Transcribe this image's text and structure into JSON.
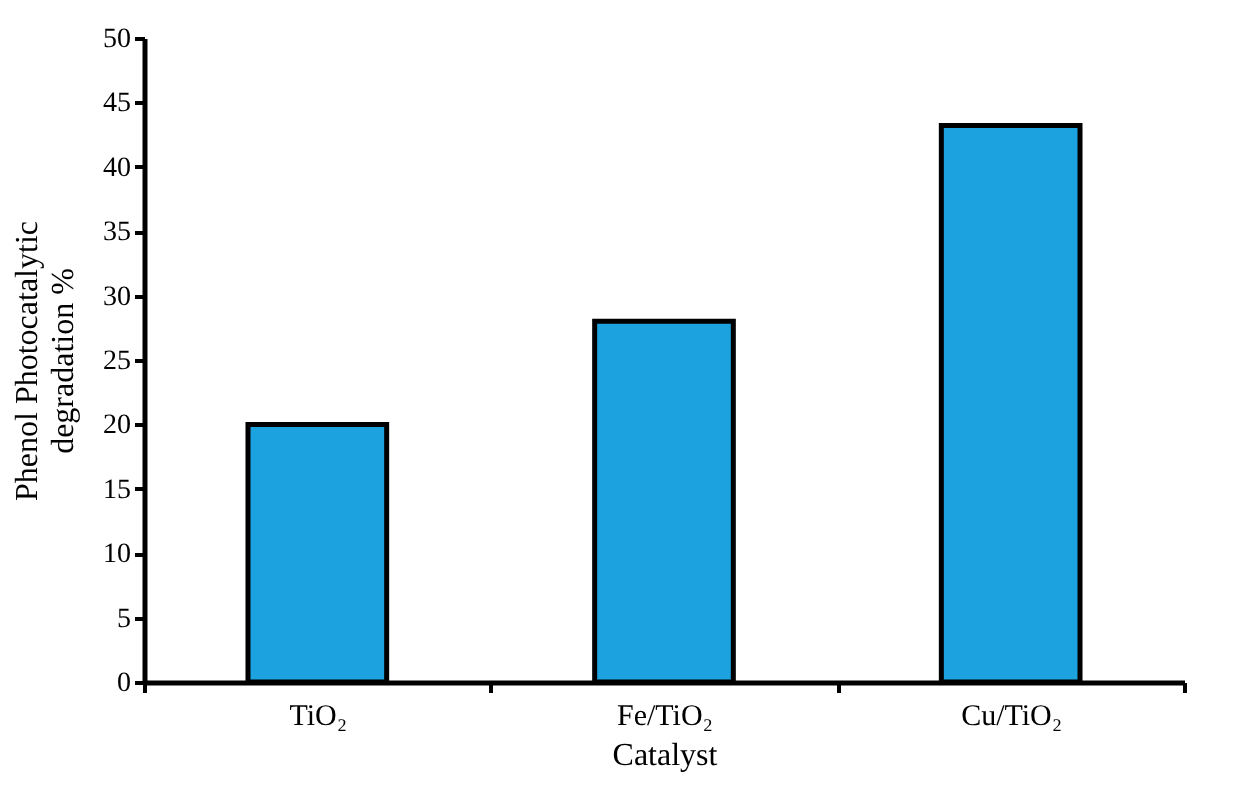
{
  "chart_data": {
    "type": "bar",
    "xlabel": "Catalyst",
    "ylabel": "Phenol Photocatalytic\ndegradation %",
    "categories": [
      "TiO₂",
      "Fe/TiO₂",
      "Cu/TiO₂"
    ],
    "values": [
      20,
      28,
      43.2
    ],
    "color": "#1ca3df",
    "ylim": [
      0,
      50
    ],
    "yticks": [
      0,
      5,
      10,
      15,
      20,
      25,
      30,
      35,
      40,
      45,
      50
    ],
    "grid": false
  }
}
